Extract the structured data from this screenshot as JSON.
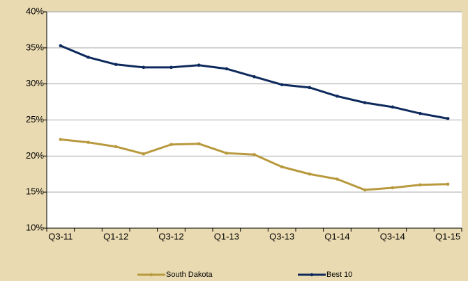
{
  "chart_data": {
    "type": "line",
    "categories": [
      "Q3-11",
      null,
      "Q1-12",
      null,
      "Q3-12",
      null,
      "Q1-13",
      null,
      "Q3-13",
      null,
      "Q1-14",
      null,
      "Q3-14",
      null,
      "Q1-15"
    ],
    "series": [
      {
        "name": "South Dakota",
        "color": "#b8993d",
        "values": [
          22.3,
          21.9,
          21.3,
          20.3,
          21.6,
          21.7,
          20.4,
          20.2,
          18.5,
          17.5,
          16.8,
          15.3,
          15.6,
          16.0,
          16.1
        ]
      },
      {
        "name": "Best 10",
        "color": "#0e2a5c",
        "values": [
          35.3,
          33.7,
          32.7,
          32.3,
          32.3,
          32.6,
          32.1,
          31.0,
          29.9,
          29.5,
          28.3,
          27.4,
          26.8,
          25.9,
          25.2
        ]
      }
    ],
    "ylim": [
      10,
      40
    ],
    "yticks": [
      {
        "value": 10,
        "label": "10%"
      },
      {
        "value": 15,
        "label": "15%"
      },
      {
        "value": 20,
        "label": "20%"
      },
      {
        "value": 25,
        "label": "25%"
      },
      {
        "value": 30,
        "label": "30%"
      },
      {
        "value": 35,
        "label": "35%"
      },
      {
        "value": 40,
        "label": "40%"
      }
    ],
    "grid": true,
    "legend": "bottom"
  }
}
